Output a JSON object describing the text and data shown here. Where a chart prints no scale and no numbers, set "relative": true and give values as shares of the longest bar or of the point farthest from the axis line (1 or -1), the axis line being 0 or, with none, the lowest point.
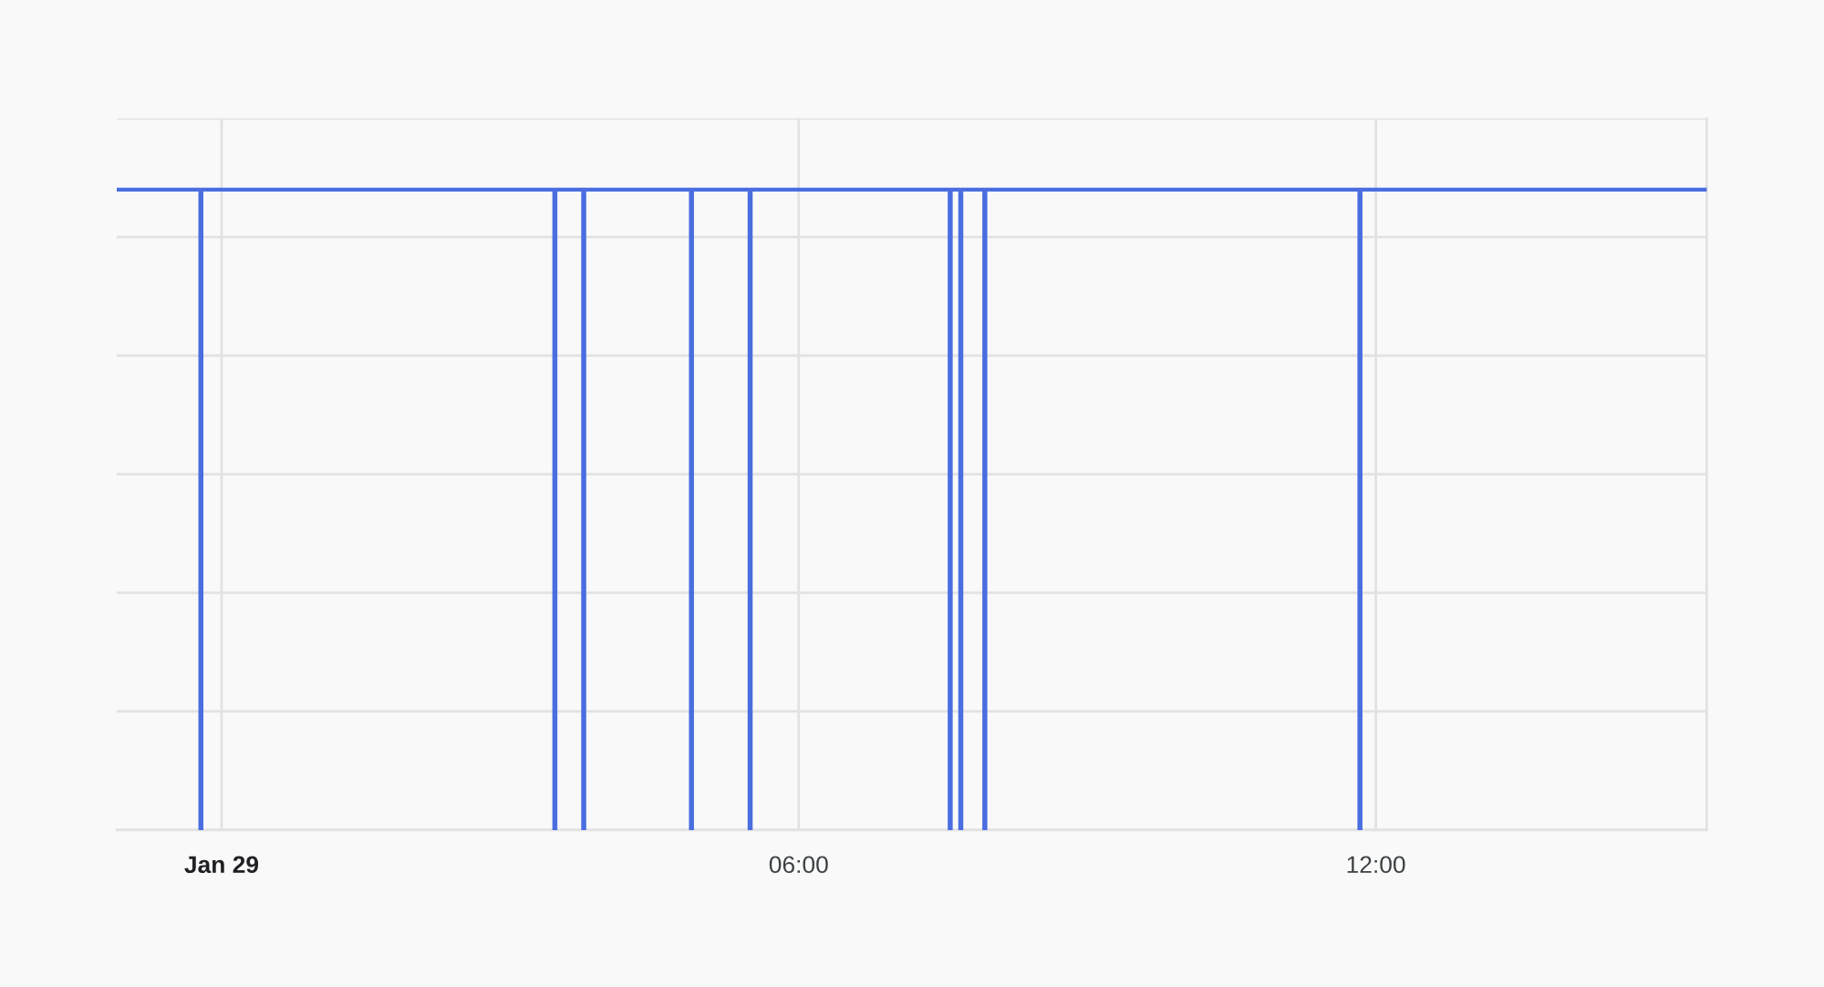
{
  "chart_data": {
    "type": "step",
    "relative": true,
    "x": [
      -1.09,
      -0.22,
      -0.21,
      3.46,
      3.47,
      3.76,
      3.77,
      4.88,
      4.89,
      5.49,
      5.5,
      7.57,
      7.58,
      7.68,
      7.69,
      7.93,
      7.94,
      11.83,
      11.84,
      15.44
    ],
    "series": [
      {
        "color": "#4a6ee0",
        "values": [
          1,
          0,
          1,
          0,
          1,
          0,
          1,
          0,
          1,
          0,
          1,
          0,
          1,
          0,
          1,
          0,
          1,
          0,
          1,
          1
        ]
      }
    ],
    "xlim": [
      -1.09,
      15.44
    ],
    "xticks": [
      {
        "value": 0,
        "label": "Jan 29"
      },
      {
        "value": 6,
        "label": "06:00"
      },
      {
        "value": 12,
        "label": "12:00"
      }
    ],
    "grid": true,
    "tick_labels": "x"
  }
}
